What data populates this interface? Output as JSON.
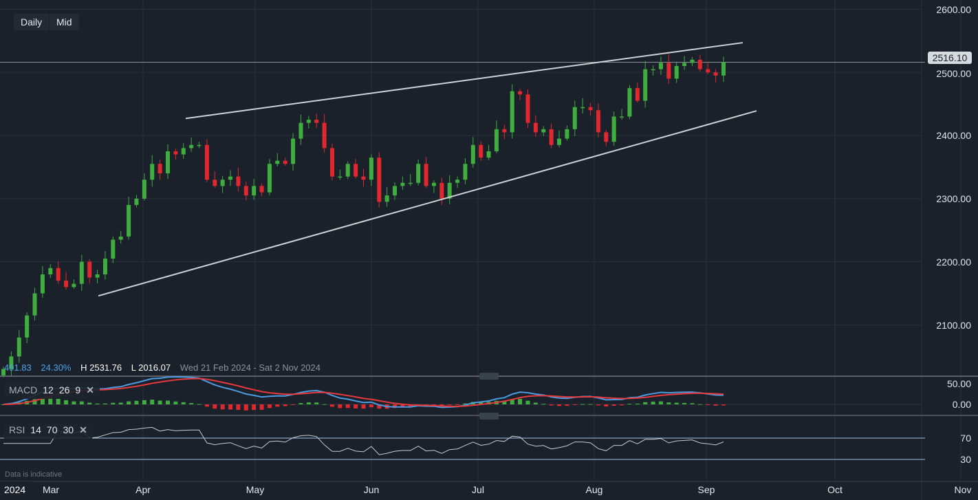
{
  "toolbar": {
    "interval": "Daily",
    "price_type": "Mid"
  },
  "header_stats": {
    "change": "491.83",
    "change_pct": "24.30%",
    "high": "H 2531.76",
    "low": "L 2016.07",
    "range": "Wed 21 Feb 2024 - Sat 2 Nov 2024"
  },
  "last_price": "2516.10",
  "colors": {
    "up": "#3fae3f",
    "down": "#e0282e",
    "bg": "#1b212a",
    "macd": "#4b9be0",
    "signal": "#e8393c",
    "rsi": "#c9ccd0",
    "trend": "#d0d3d6"
  },
  "macd": {
    "name": "MACD",
    "p1": "12",
    "p2": "26",
    "p3": "9",
    "ticks": [
      "50.00",
      "0.00"
    ]
  },
  "rsi": {
    "name": "RSI",
    "p1": "14",
    "p2": "70",
    "p3": "30",
    "ticks": [
      "70",
      "30"
    ]
  },
  "footer": {
    "note": "Data is indicative",
    "year": "2024"
  },
  "chart_data": {
    "type": "candlestick",
    "title": "",
    "x_range": [
      "21 Feb 2024",
      "2 Nov 2024"
    ],
    "x_ticks": [
      "Mar",
      "Apr",
      "May",
      "Jun",
      "Jul",
      "Aug",
      "Sep",
      "Oct",
      "Nov"
    ],
    "y_ticks": [
      "2600.00",
      "2500.00",
      "2400.00",
      "2300.00",
      "2200.00",
      "2100.00"
    ],
    "ylim": [
      2035,
      2615
    ],
    "closes": [
      2030,
      2050,
      2080,
      2115,
      2150,
      2180,
      2190,
      2170,
      2160,
      2165,
      2200,
      2175,
      2180,
      2205,
      2235,
      2240,
      2290,
      2300,
      2330,
      2355,
      2340,
      2375,
      2370,
      2380,
      2385,
      2385,
      2330,
      2320,
      2330,
      2335,
      2320,
      2305,
      2320,
      2310,
      2355,
      2360,
      2355,
      2395,
      2420,
      2425,
      2420,
      2380,
      2335,
      2335,
      2355,
      2335,
      2330,
      2365,
      2295,
      2305,
      2320,
      2325,
      2325,
      2355,
      2320,
      2325,
      2300,
      2325,
      2330,
      2355,
      2385,
      2365,
      2375,
      2410,
      2405,
      2470,
      2465,
      2420,
      2405,
      2410,
      2385,
      2395,
      2410,
      2445,
      2445,
      2440,
      2405,
      2390,
      2430,
      2430,
      2475,
      2455,
      2505,
      2505,
      2515,
      2490,
      2510,
      2515,
      2520,
      2505,
      2500,
      2495,
      2516
    ],
    "trendlines": [
      {
        "name": "upper-resistance",
        "from": 2427,
        "to": 2547
      },
      {
        "name": "lower-support",
        "from": 2146,
        "to": 2439
      }
    ]
  }
}
